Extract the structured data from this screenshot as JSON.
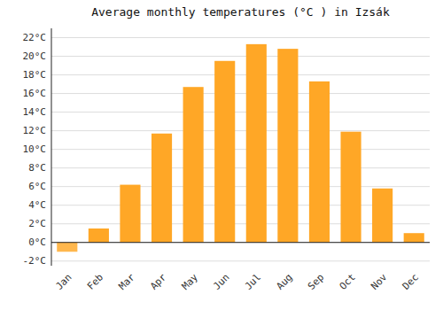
{
  "chart_data": {
    "type": "bar",
    "title": "Average monthly temperatures (°C ) in Izsák",
    "categories": [
      "Jan",
      "Feb",
      "Mar",
      "Apr",
      "May",
      "Jun",
      "Jul",
      "Aug",
      "Sep",
      "Oct",
      "Nov",
      "Dec"
    ],
    "values": [
      -1.0,
      1.5,
      6.2,
      11.7,
      16.7,
      19.5,
      21.3,
      20.8,
      17.3,
      11.9,
      5.8,
      1.0
    ],
    "colors": [
      "#FFB74D",
      "#FFA726",
      "#FFA726",
      "#FFA726",
      "#FFA726",
      "#FFA726",
      "#FFA726",
      "#FFA726",
      "#FFA726",
      "#FFA726",
      "#FFA726",
      "#FFA726"
    ],
    "ylim": [
      -2.5,
      23
    ],
    "yticks": [
      {
        "value": -2,
        "label": "-2°C"
      },
      {
        "value": 0,
        "label": "0°C"
      },
      {
        "value": 2,
        "label": "2°C"
      },
      {
        "value": 4,
        "label": "4°C"
      },
      {
        "value": 6,
        "label": "6°C"
      },
      {
        "value": 8,
        "label": "8°C"
      },
      {
        "value": 10,
        "label": "10°C"
      },
      {
        "value": 12,
        "label": "12°C"
      },
      {
        "value": 14,
        "label": "14°C"
      },
      {
        "value": 16,
        "label": "16°C"
      },
      {
        "value": 18,
        "label": "18°C"
      },
      {
        "value": 20,
        "label": "20°C"
      },
      {
        "value": 22,
        "label": "22°C"
      }
    ],
    "grid": true
  }
}
